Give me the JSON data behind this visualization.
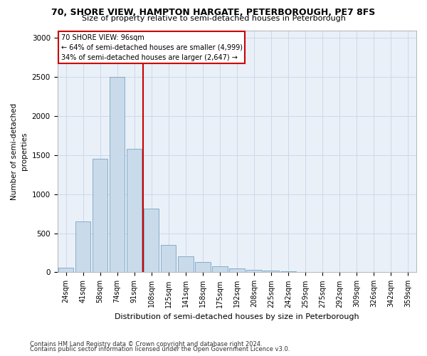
{
  "title1": "70, SHORE VIEW, HAMPTON HARGATE, PETERBOROUGH, PE7 8FS",
  "title2": "Size of property relative to semi-detached houses in Peterborough",
  "xlabel": "Distribution of semi-detached houses by size in Peterborough",
  "ylabel": "Number of semi-detached\nproperties",
  "footnote1": "Contains HM Land Registry data © Crown copyright and database right 2024.",
  "footnote2": "Contains public sector information licensed under the Open Government Licence v3.0.",
  "annotation_title": "70 SHORE VIEW: 96sqm",
  "annotation_line1": "← 64% of semi-detached houses are smaller (4,999)",
  "annotation_line2": "34% of semi-detached houses are larger (2,647) →",
  "bar_color": "#c9daea",
  "bar_edge_color": "#6699bb",
  "line_color": "#cc0000",
  "annotation_box_edge": "#cc0000",
  "categories": [
    "24sqm",
    "41sqm",
    "58sqm",
    "74sqm",
    "91sqm",
    "108sqm",
    "125sqm",
    "141sqm",
    "158sqm",
    "175sqm",
    "192sqm",
    "208sqm",
    "225sqm",
    "242sqm",
    "259sqm",
    "275sqm",
    "292sqm",
    "309sqm",
    "326sqm",
    "342sqm",
    "359sqm"
  ],
  "values": [
    55,
    650,
    1450,
    2500,
    1580,
    820,
    350,
    205,
    135,
    75,
    50,
    28,
    18,
    10,
    7,
    5,
    4,
    3,
    2,
    2,
    1
  ],
  "ylim": [
    0,
    3100
  ],
  "yticks": [
    0,
    500,
    1000,
    1500,
    2000,
    2500,
    3000
  ],
  "property_line_x": 4.5,
  "grid_color": "#cdd8e8",
  "bg_color": "#eaf0f8"
}
